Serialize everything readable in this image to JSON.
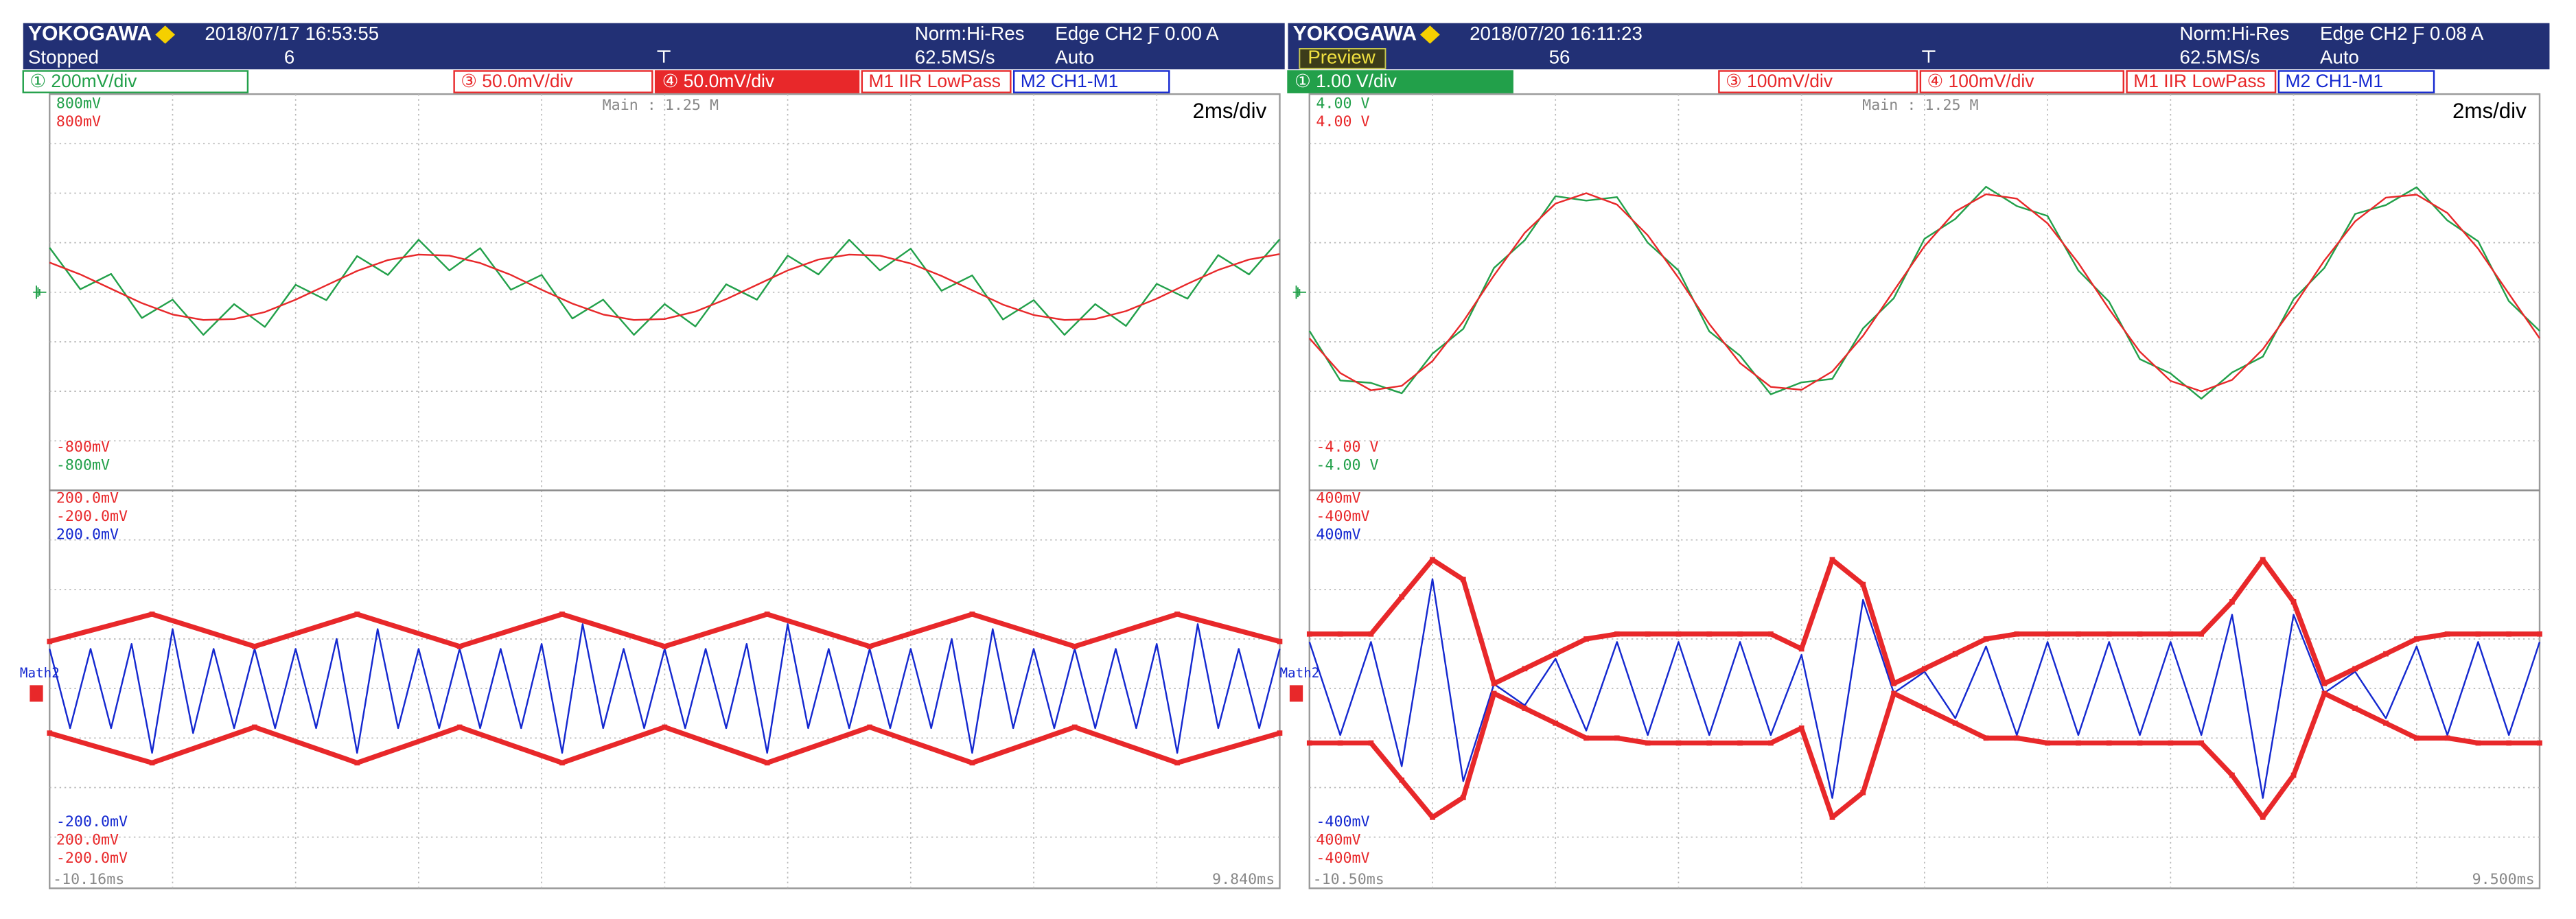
{
  "panels": [
    {
      "brand": "YOKOGAWA",
      "datetime": "2018/07/17 16:53:55",
      "status": "Stopped",
      "status_boxed": false,
      "count": "6",
      "mode": "Norm:Hi-Res",
      "sample_rate": "62.5MS/s",
      "trigger": "Edge CH2 Ƒ 0.00 A",
      "trigger_mode": "Auto",
      "channels": [
        {
          "label": "① 200mV/div",
          "color": "#22a04a",
          "filled": false
        },
        {
          "label": "③ 50.0mV/div",
          "color": "#e8282a",
          "filled": false
        },
        {
          "label": "④ 50.0mV/div",
          "color": "#e8282a",
          "filled": true
        },
        {
          "label": "M1 IIR LowPass",
          "color": "#e8282a",
          "filled": false
        },
        {
          "label": "M2 CH1-M1",
          "color": "#1428d0",
          "filled": false
        }
      ],
      "zoom": "Main : 1.25 M",
      "timebase": "2ms/div",
      "upper": {
        "top_labels": [
          {
            "text": "800mV",
            "color": "#22a04a"
          },
          {
            "text": "800mV",
            "color": "#e8282a"
          }
        ],
        "bottom_labels": [
          {
            "text": "-800mV",
            "color": "#e8282a"
          },
          {
            "text": "-800mV",
            "color": "#22a04a"
          }
        ],
        "traces": [
          {
            "color": "#22a04a",
            "width": 1,
            "values": [
              0.9,
              0.06,
              0.37,
              -0.52,
              -0.15,
              -0.86,
              -0.24,
              -0.7,
              0.15,
              -0.16,
              0.73,
              0.35,
              1.06,
              0.44,
              0.89,
              0.05,
              0.35,
              -0.53,
              -0.15,
              -0.86,
              -0.24,
              -0.69,
              0.16,
              -0.15,
              0.74,
              0.36,
              1.06,
              0.44,
              0.88,
              0.03,
              0.34,
              -0.55,
              -0.16,
              -0.86,
              -0.24,
              -0.68,
              0.17,
              -0.13,
              0.75,
              0.36,
              1.07
            ]
          },
          {
            "color": "#e8282a",
            "width": 1,
            "values": [
              0.6,
              0.36,
              0.07,
              -0.22,
              -0.45,
              -0.56,
              -0.54,
              -0.4,
              -0.15,
              0.14,
              0.43,
              0.65,
              0.76,
              0.74,
              0.59,
              0.35,
              0.05,
              -0.23,
              -0.45,
              -0.56,
              -0.54,
              -0.39,
              -0.14,
              0.15,
              0.44,
              0.66,
              0.76,
              0.74,
              0.58,
              0.33,
              0.04,
              -0.25,
              -0.46,
              -0.56,
              -0.54,
              -0.38,
              -0.13,
              0.17,
              0.45,
              0.66,
              0.77
            ]
          }
        ]
      },
      "lower": {
        "marker": "Math2",
        "top_labels": [
          {
            "text": "200.0mV",
            "color": "#e8282a"
          },
          {
            "text": "-200.0mV",
            "color": "#e8282a"
          },
          {
            "text": "200.0mV",
            "color": "#1428d0"
          }
        ],
        "bottom_labels": [
          {
            "text": "-200.0mV",
            "color": "#1428d0"
          },
          {
            "text": "200.0mV",
            "color": "#e8282a"
          },
          {
            "text": "-200.0mV",
            "color": "#e8282a"
          }
        ],
        "traces": [
          {
            "color": "#1428d0",
            "width": 1,
            "values": [
              0.8,
              -0.8,
              0.8,
              -0.8,
              0.9,
              -1.3,
              1.2,
              -0.9,
              0.8,
              -0.8,
              0.8,
              -0.8,
              0.8,
              -0.8,
              1.0,
              -1.3,
              1.2,
              -0.8,
              0.8,
              -0.8,
              0.8,
              -0.8,
              0.8,
              -0.8,
              0.9,
              -1.3,
              1.3,
              -0.8,
              0.8,
              -0.8,
              0.8,
              -0.8,
              0.8,
              -0.8,
              0.9,
              -1.3,
              1.3,
              -0.8,
              0.8,
              -0.8,
              0.8,
              -0.8,
              0.8,
              -0.8,
              1.0,
              -1.3,
              1.2,
              -0.8,
              0.8,
              -0.8,
              0.8,
              -0.8,
              0.8,
              -0.8,
              0.9,
              -1.3,
              1.3,
              -0.8,
              0.8,
              -0.8,
              0.8
            ]
          },
          {
            "color": "#e8282a",
            "width": 3,
            "values": [
              0.95,
              1.5,
              0.85,
              1.5,
              0.85,
              1.5,
              0.85,
              1.5,
              0.85,
              1.5,
              0.85,
              1.5,
              0.95
            ]
          },
          {
            "color": "#e8282a",
            "width": 3,
            "values": [
              -0.9,
              -1.5,
              -0.78,
              -1.5,
              -0.78,
              -1.5,
              -0.78,
              -1.5,
              -0.78,
              -1.5,
              -0.78,
              -1.5,
              -0.9
            ]
          }
        ]
      },
      "time_start": "-10.16ms",
      "time_end": "9.840ms"
    },
    {
      "brand": "YOKOGAWA",
      "datetime": "2018/07/20 16:11:23",
      "status": "Preview",
      "status_boxed": true,
      "count": "56",
      "mode": "Norm:Hi-Res",
      "sample_rate": "62.5MS/s",
      "trigger": "Edge CH2 Ƒ 0.08 A",
      "trigger_mode": "Auto",
      "channels": [
        {
          "label": "① 1.00 V/div",
          "color": "#22a04a",
          "filled": true
        },
        {
          "label": "③ 100mV/div",
          "color": "#e8282a",
          "filled": false
        },
        {
          "label": "④ 100mV/div",
          "color": "#e8282a",
          "filled": false
        },
        {
          "label": "M1 IIR LowPass",
          "color": "#e8282a",
          "filled": false
        },
        {
          "label": "M2 CH1-M1",
          "color": "#1428d0",
          "filled": false
        }
      ],
      "zoom": "Main : 1.25 M",
      "timebase": "2ms/div",
      "upper": {
        "top_labels": [
          {
            "text": "4.00 V",
            "color": "#22a04a"
          },
          {
            "text": "4.00 V",
            "color": "#e8282a"
          }
        ],
        "bottom_labels": [
          {
            "text": "-4.00 V",
            "color": "#e8282a"
          },
          {
            "text": "-4.00 V",
            "color": "#22a04a"
          }
        ],
        "traces": [
          {
            "color": "#22a04a",
            "width": 1,
            "values": [
              -0.78,
              -1.78,
              -1.83,
              -2.04,
              -1.24,
              -0.74,
              0.49,
              1.05,
              1.94,
              1.85,
              1.92,
              1.0,
              0.44,
              -0.79,
              -1.28,
              -2.06,
              -1.82,
              -1.75,
              -0.73,
              -0.12,
              1.08,
              1.48,
              2.13,
              1.74,
              1.54,
              0.44,
              -0.19,
              -1.35,
              -1.64,
              -2.15,
              -1.62,
              -1.3,
              -0.14,
              0.49,
              1.58,
              1.76,
              2.12,
              1.45,
              1.03,
              -0.18,
              -0.78
            ]
          },
          {
            "color": "#e8282a",
            "width": 1,
            "values": [
              -0.93,
              -1.63,
              -1.98,
              -1.89,
              -1.39,
              -0.59,
              0.34,
              1.2,
              1.79,
              2.0,
              1.77,
              1.15,
              0.29,
              -0.64,
              -1.43,
              -1.91,
              -1.97,
              -1.6,
              -0.88,
              0.03,
              0.93,
              1.63,
              1.98,
              1.89,
              1.39,
              0.59,
              -0.34,
              -1.2,
              -1.79,
              -2.0,
              -1.77,
              -1.15,
              -0.29,
              0.64,
              1.43,
              1.91,
              1.97,
              1.6,
              0.88,
              -0.03,
              -0.93
            ]
          }
        ]
      },
      "lower": {
        "marker": "Math2",
        "top_labels": [
          {
            "text": "400mV",
            "color": "#e8282a"
          },
          {
            "text": "-400mV",
            "color": "#e8282a"
          },
          {
            "text": "400mV",
            "color": "#1428d0"
          }
        ],
        "bottom_labels": [
          {
            "text": "-400mV",
            "color": "#1428d0"
          },
          {
            "text": "400mV",
            "color": "#e8282a"
          },
          {
            "text": "-400mV",
            "color": "#e8282a"
          }
        ],
        "traces": [
          {
            "color": "#1428d0",
            "width": 1,
            "values": [
              0.94,
              -0.94,
              0.94,
              -1.57,
              2.21,
              -1.87,
              0.09,
              -0.34,
              0.6,
              -0.85,
              0.94,
              -0.94,
              0.94,
              -0.94,
              0.94,
              -0.94,
              0.68,
              -2.21,
              1.79,
              -0.09,
              0.34,
              -0.6,
              0.85,
              -0.94,
              0.94,
              -0.94,
              0.94,
              -0.94,
              0.94,
              -0.94,
              1.49,
              -2.21,
              1.49,
              -0.09,
              0.34,
              -0.6,
              0.85,
              -0.94,
              0.94,
              -0.94,
              0.94
            ]
          },
          {
            "color": "#e8282a",
            "width": 3,
            "values": [
              1.1,
              1.1,
              1.1,
              1.85,
              2.6,
              2.2,
              0.1,
              0.4,
              0.7,
              1.0,
              1.1,
              1.1,
              1.1,
              1.1,
              1.1,
              1.1,
              0.8,
              2.6,
              2.1,
              0.1,
              0.4,
              0.7,
              1.0,
              1.1,
              1.1,
              1.1,
              1.1,
              1.1,
              1.1,
              1.1,
              1.75,
              2.6,
              1.75,
              0.1,
              0.4,
              0.7,
              1.0,
              1.1,
              1.1,
              1.1,
              1.1
            ]
          },
          {
            "color": "#e8282a",
            "width": 3,
            "values": [
              -1.1,
              -1.1,
              -1.1,
              -1.85,
              -2.6,
              -2.2,
              -0.1,
              -0.4,
              -0.7,
              -1.0,
              -1.0,
              -1.1,
              -1.1,
              -1.1,
              -1.1,
              -1.1,
              -0.8,
              -2.6,
              -2.1,
              -0.1,
              -0.4,
              -0.7,
              -1.0,
              -1.0,
              -1.1,
              -1.1,
              -1.1,
              -1.1,
              -1.1,
              -1.1,
              -1.75,
              -2.6,
              -1.75,
              -0.1,
              -0.4,
              -0.7,
              -1.0,
              -1.0,
              -1.1,
              -1.1,
              -1.1
            ]
          }
        ]
      },
      "time_start": "-10.50ms",
      "time_end": "9.500ms"
    }
  ]
}
